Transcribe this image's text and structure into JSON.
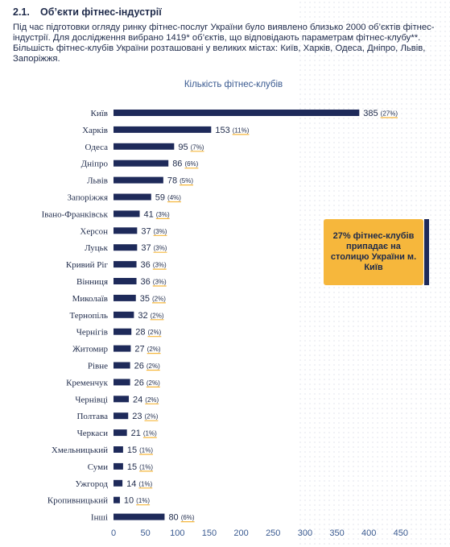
{
  "section": {
    "number": "2.1.",
    "title": "Об’єкти фітнес-індустрії",
    "intro": "Під час підготовки огляду ринку фітнес-послуг України було виявлено близько 2000 об’єктів фітнес-індустрії. Для дослідження вибрано 1419* об’єктів, що відповідають параметрам фітнес-клубу**. Більшість фітнес-клубів України розташовані у великих містах: Київ, Харків, Одеса, Дніпро, Львів, Запоріжжя."
  },
  "callout": {
    "text": "27% фітнес-клубів припадає на столицю України м. Київ"
  },
  "colors": {
    "bar": "#1e2a5a",
    "underline": "#f6b73c",
    "callout": "#f6b73c"
  },
  "chart_data": {
    "type": "bar",
    "orientation": "horizontal",
    "title": "Кількість фітнес-клубів",
    "categories": [
      "Київ",
      "Харків",
      "Одеса",
      "Дніпро",
      "Львів",
      "Запоріжжя",
      "Івано-Франківськ",
      "Херсон",
      "Луцьк",
      "Кривий Ріг",
      "Вінниця",
      "Миколаїв",
      "Тернопіль",
      "Чернігів",
      "Житомир",
      "Рівне",
      "Кременчук",
      "Чернівці",
      "Полтава",
      "Черкаси",
      "Хмельницький",
      "Суми",
      "Ужгород",
      "Кропивницький",
      "Інші"
    ],
    "values": [
      385,
      153,
      95,
      86,
      78,
      59,
      41,
      37,
      37,
      36,
      36,
      35,
      32,
      28,
      27,
      26,
      26,
      24,
      23,
      21,
      15,
      15,
      14,
      10,
      80
    ],
    "percent_labels": [
      "(27%)",
      "(11%)",
      "(7%)",
      "(6%)",
      "(5%)",
      "(4%)",
      "(3%)",
      "(3%)",
      "(3%)",
      "(3%)",
      "(3%)",
      "(2%)",
      "(2%)",
      "(2%)",
      "(2%)",
      "(2%)",
      "(2%)",
      "(2%)",
      "(2%)",
      "(1%)",
      "(1%)",
      "(1%)",
      "(1%)",
      "(1%)",
      "(6%)"
    ],
    "xticks": [
      0,
      50,
      100,
      150,
      200,
      250,
      300,
      350,
      400,
      450
    ],
    "xlim": [
      0,
      450
    ],
    "grid": false,
    "legend": "none"
  }
}
